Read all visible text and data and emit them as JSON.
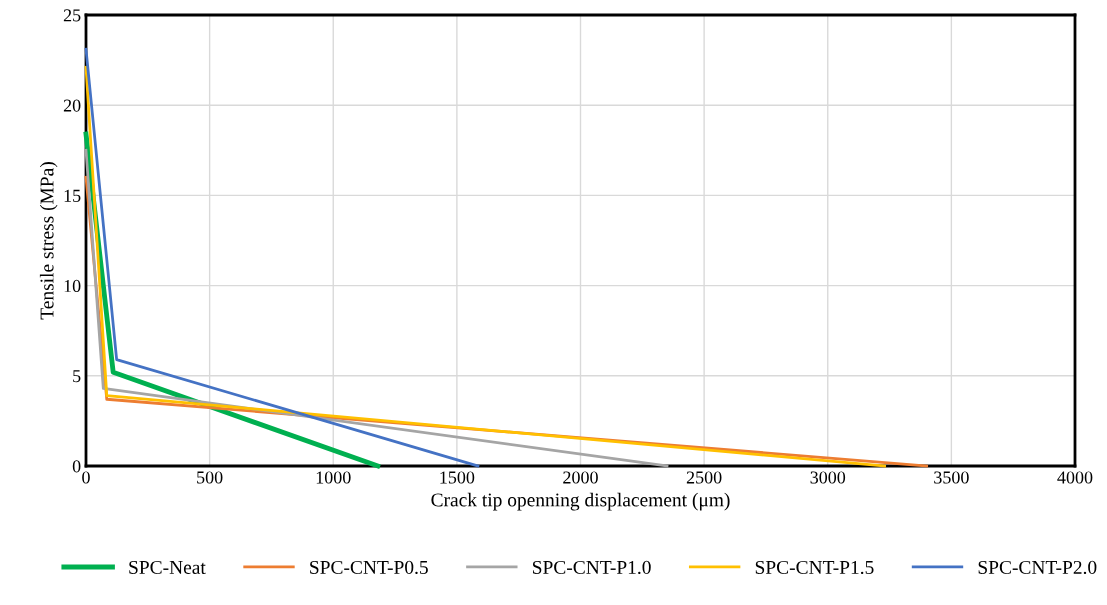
{
  "chart_data": {
    "type": "line",
    "xlabel": "Crack tip openning displacement (μm)",
    "ylabel": "Tensile stress (MPa)",
    "xlim": [
      0,
      4000
    ],
    "xticks": [
      0,
      500,
      1000,
      1500,
      2000,
      2500,
      3000,
      3500,
      4000
    ],
    "ylim": [
      0,
      25
    ],
    "yticks": [
      0,
      5,
      10,
      15,
      20,
      25
    ],
    "grid": true,
    "legend": "bottom",
    "series": [
      {
        "name": "SPC-Neat",
        "color": "#00b050",
        "x": [
          0,
          110,
          1180
        ],
        "values": [
          18.4,
          5.2,
          0
        ]
      },
      {
        "name": "SPC-CNT-P0.5",
        "color": "#ed7d31",
        "x": [
          0,
          84,
          3400
        ],
        "values": [
          16.0,
          3.7,
          0
        ]
      },
      {
        "name": "SPC-CNT-P1.0",
        "color": "#a5a5a5",
        "x": [
          0,
          70,
          2350
        ],
        "values": [
          17.5,
          4.3,
          0
        ]
      },
      {
        "name": "SPC-CNT-P1.5",
        "color": "#ffc000",
        "x": [
          0,
          84,
          3230
        ],
        "values": [
          22.1,
          3.9,
          0
        ]
      },
      {
        "name": "SPC-CNT-P2.0",
        "color": "#4472c4",
        "x": [
          0,
          124,
          1585
        ],
        "values": [
          23.1,
          5.9,
          0
        ]
      }
    ]
  }
}
